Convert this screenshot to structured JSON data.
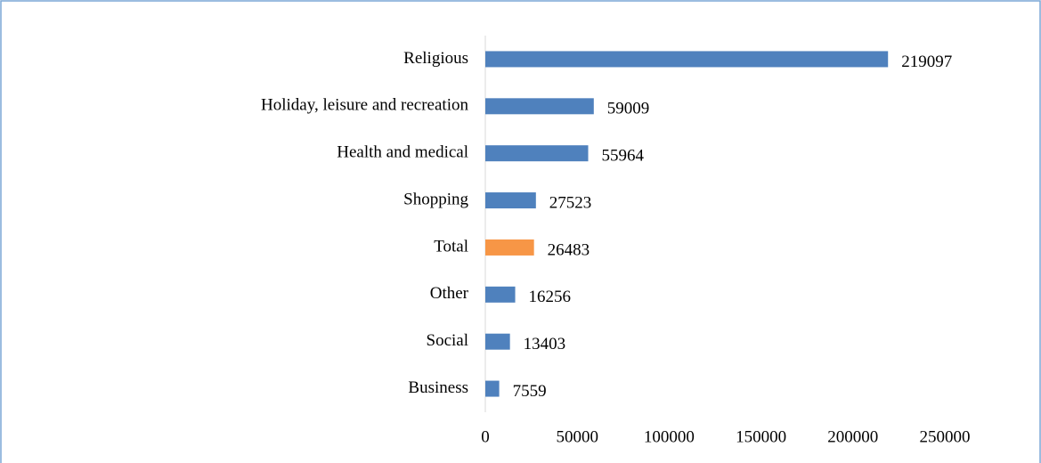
{
  "chart_data": {
    "type": "bar",
    "orientation": "horizontal",
    "categories": [
      "Religious",
      "Holiday, leisure and recreation",
      "Health and medical",
      "Shopping",
      "Total",
      "Other",
      "Social",
      "Business"
    ],
    "values": [
      219097,
      59009,
      55964,
      27523,
      26483,
      16256,
      13403,
      7559
    ],
    "colors": [
      "#4f81bd",
      "#4f81bd",
      "#4f81bd",
      "#4f81bd",
      "#f79646",
      "#4f81bd",
      "#4f81bd",
      "#4f81bd"
    ],
    "xlim": [
      0,
      250000
    ],
    "xticks": [
      0,
      50000,
      100000,
      150000,
      200000,
      250000
    ],
    "grid": false
  }
}
